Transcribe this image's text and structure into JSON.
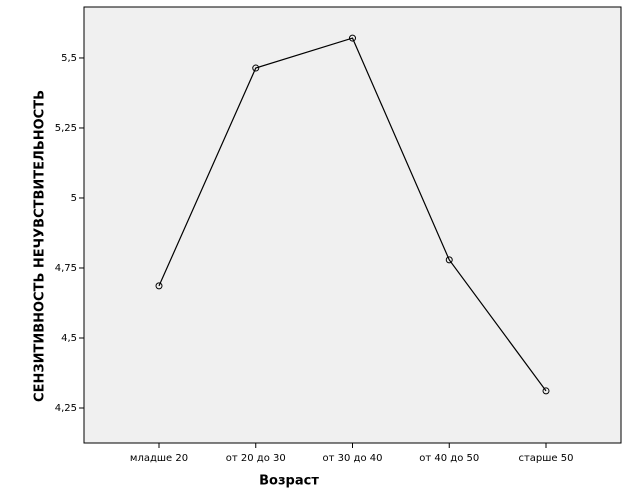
{
  "chart_data": {
    "type": "line",
    "x_label": "Возраст",
    "y_label": "СЕНЗИТИВНОСТЬ НЕЧУВСТВИТЕЛЬНОСТЬ",
    "categories": [
      "младше 20",
      "от 20 до 30",
      "от 30 до 40",
      "от 40 до 50",
      "старше 50"
    ],
    "values": [
      4.686,
      5.464,
      5.571,
      4.779,
      4.311
    ],
    "color": "#000000",
    "ylim": [
      4.125,
      5.682
    ],
    "yticks": [
      {
        "value": 4.25,
        "label": "4,25"
      },
      {
        "value": 4.5,
        "label": "4,5"
      },
      {
        "value": 4.75,
        "label": "4,75"
      },
      5,
      {
        "value": 5.25,
        "label": "5,25"
      },
      {
        "value": 5.5,
        "label": "5,5"
      }
    ],
    "grid": false
  }
}
